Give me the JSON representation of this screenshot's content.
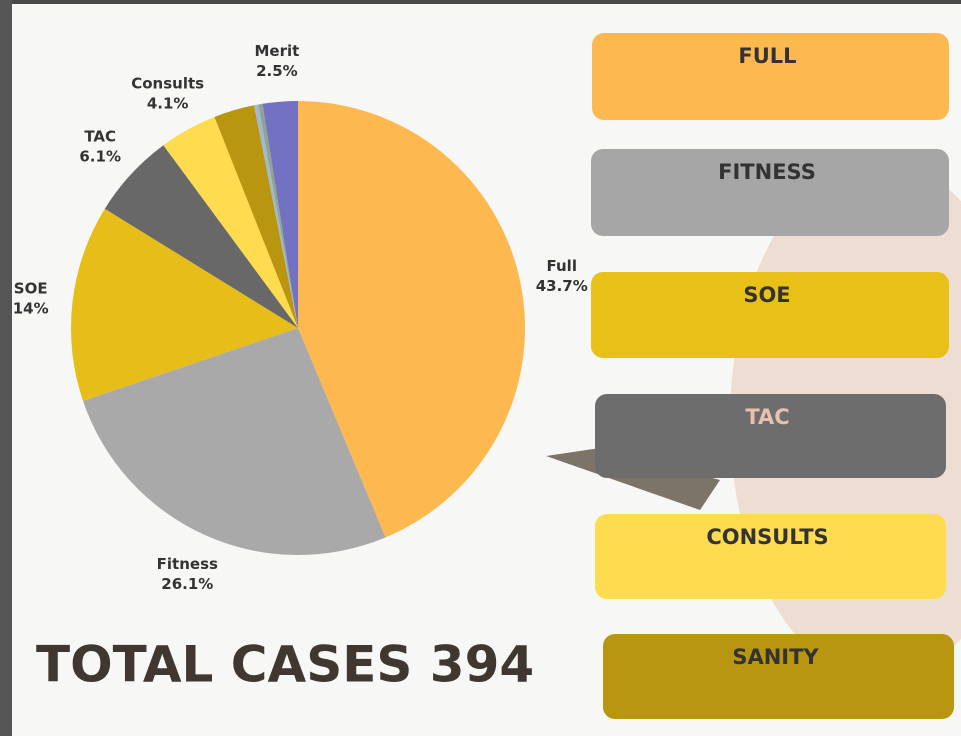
{
  "chart_data": {
    "type": "pie",
    "title": "TOTAL CASES 394",
    "categories": [
      "Full",
      "Fitness",
      "SOE",
      "TAC",
      "Consults",
      null,
      null,
      null,
      "Merit"
    ],
    "values": [
      43.7,
      26.1,
      14,
      6.1,
      4.1,
      2.9,
      0.3,
      0.3,
      2.5
    ],
    "value_labels": [
      "43.7%",
      "26.1%",
      "14%",
      "6.1%",
      "4.1%",
      null,
      null,
      null,
      "2.5%"
    ],
    "colors": [
      "#fdb94f",
      "#a9a9a9",
      "#e6bd19",
      "#686868",
      "#fedb4f",
      "#b8960f",
      "#9fb8d8",
      "#8fa58f",
      "#7371c2"
    ]
  },
  "panels": [
    {
      "label": "FULL",
      "color": "#fdb94f",
      "text_color": "#333333"
    },
    {
      "label": "FITNESS",
      "color": "#a6a6a6",
      "text_color": "#333333"
    },
    {
      "label": "SOE",
      "color": "#e8c018",
      "text_color": "#333333"
    },
    {
      "label": "TAC",
      "color": "#6d6d6d",
      "text_color": "#e8c0b0"
    },
    {
      "label": "CONSULTS",
      "color": "#fedb4f",
      "text_color": "#333333"
    },
    {
      "label": "SANITY",
      "color": "#b8960f",
      "text_color": "#333333"
    }
  ]
}
